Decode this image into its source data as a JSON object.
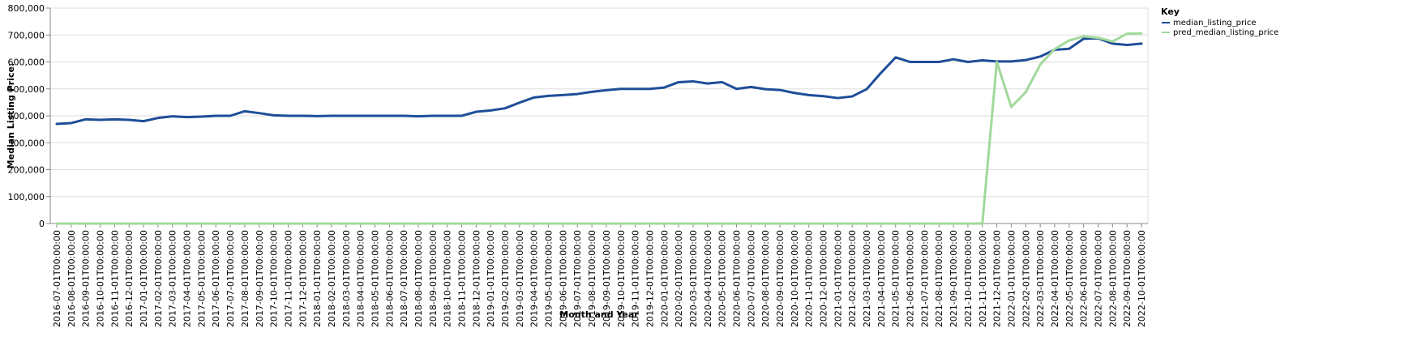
{
  "chart_data": {
    "type": "line",
    "xlabel": "Month and Year",
    "ylabel": "Median Listing Price:",
    "ylim": [
      0,
      800000
    ],
    "yticks": [
      "0",
      "100,000",
      "200,000",
      "300,000",
      "400,000",
      "500,000",
      "600,000",
      "700,000",
      "800,000"
    ],
    "yticks_values": [
      0,
      100000,
      200000,
      300000,
      400000,
      500000,
      600000,
      700000,
      800000
    ],
    "grid": true,
    "legend": {
      "title": "Key",
      "position": "top-right"
    },
    "x": [
      "2016-07-01T00:00:00",
      "2016-08-01T00:00:00",
      "2016-09-01T00:00:00",
      "2016-10-01T00:00:00",
      "2016-11-01T00:00:00",
      "2016-12-01T00:00:00",
      "2017-01-01T00:00:00",
      "2017-02-01T00:00:00",
      "2017-03-01T00:00:00",
      "2017-04-01T00:00:00",
      "2017-05-01T00:00:00",
      "2017-06-01T00:00:00",
      "2017-07-01T00:00:00",
      "2017-08-01T00:00:00",
      "2017-09-01T00:00:00",
      "2017-10-01T00:00:00",
      "2017-11-01T00:00:00",
      "2017-12-01T00:00:00",
      "2018-01-01T00:00:00",
      "2018-02-01T00:00:00",
      "2018-03-01T00:00:00",
      "2018-04-01T00:00:00",
      "2018-05-01T00:00:00",
      "2018-06-01T00:00:00",
      "2018-07-01T00:00:00",
      "2018-08-01T00:00:00",
      "2018-09-01T00:00:00",
      "2018-10-01T00:00:00",
      "2018-11-01T00:00:00",
      "2018-12-01T00:00:00",
      "2019-01-01T00:00:00",
      "2019-02-01T00:00:00",
      "2019-03-01T00:00:00",
      "2019-04-01T00:00:00",
      "2019-05-01T00:00:00",
      "2019-06-01T00:00:00",
      "2019-07-01T00:00:00",
      "2019-08-01T00:00:00",
      "2019-09-01T00:00:00",
      "2019-10-01T00:00:00",
      "2019-11-01T00:00:00",
      "2019-12-01T00:00:00",
      "2020-01-01T00:00:00",
      "2020-02-01T00:00:00",
      "2020-03-01T00:00:00",
      "2020-04-01T00:00:00",
      "2020-05-01T00:00:00",
      "2020-06-01T00:00:00",
      "2020-07-01T00:00:00",
      "2020-08-01T00:00:00",
      "2020-09-01T00:00:00",
      "2020-10-01T00:00:00",
      "2020-11-01T00:00:00",
      "2020-12-01T00:00:00",
      "2021-01-01T00:00:00",
      "2021-02-01T00:00:00",
      "2021-03-01T00:00:00",
      "2021-04-01T00:00:00",
      "2021-05-01T00:00:00",
      "2021-06-01T00:00:00",
      "2021-07-01T00:00:00",
      "2021-08-01T00:00:00",
      "2021-09-01T00:00:00",
      "2021-10-01T00:00:00",
      "2021-11-01T00:00:00",
      "2021-12-01T00:00:00",
      "2022-01-01T00:00:00",
      "2022-02-01T00:00:00",
      "2022-03-01T00:00:00",
      "2022-04-01T00:00:00",
      "2022-05-01T00:00:00",
      "2022-06-01T00:00:00",
      "2022-07-01T00:00:00",
      "2022-08-01T00:00:00",
      "2022-09-01T00:00:00",
      "2022-10-01T00:00:00"
    ],
    "series": [
      {
        "name": "median_listing_price",
        "color": "#1f4e99",
        "values": [
          370000,
          373000,
          387000,
          385000,
          387000,
          385000,
          380000,
          392000,
          398000,
          395000,
          397000,
          400000,
          400000,
          417000,
          410000,
          402000,
          400000,
          400000,
          399000,
          400000,
          400000,
          400000,
          400000,
          400000,
          400000,
          398000,
          400000,
          400000,
          400000,
          415000,
          420000,
          428000,
          449000,
          468000,
          474000,
          477000,
          481000,
          489000,
          495000,
          500000,
          500000,
          500000,
          505000,
          525000,
          528000,
          520000,
          525000,
          500000,
          507000,
          499000,
          496000,
          485000,
          477000,
          473000,
          466000,
          472000,
          499000,
          560000,
          617000,
          600000,
          600000,
          600000,
          610000,
          600000,
          606000,
          602000,
          602000,
          607000,
          620000,
          645000,
          649000,
          686000,
          688000,
          668000,
          663000,
          668000
        ]
      },
      {
        "name": "pred_median_listing_price",
        "color": "#a1d99b",
        "values": [
          0,
          0,
          0,
          0,
          0,
          0,
          0,
          0,
          0,
          0,
          0,
          0,
          0,
          0,
          0,
          0,
          0,
          0,
          0,
          0,
          0,
          0,
          0,
          0,
          0,
          0,
          0,
          0,
          0,
          0,
          0,
          0,
          0,
          0,
          0,
          0,
          0,
          0,
          0,
          0,
          0,
          0,
          0,
          0,
          0,
          0,
          0,
          0,
          0,
          0,
          0,
          0,
          0,
          0,
          0,
          0,
          0,
          0,
          0,
          0,
          0,
          0,
          0,
          0,
          0,
          600000,
          433000,
          488000,
          590000,
          648000,
          680000,
          695000,
          690000,
          676000,
          705000,
          706000
        ]
      }
    ]
  }
}
